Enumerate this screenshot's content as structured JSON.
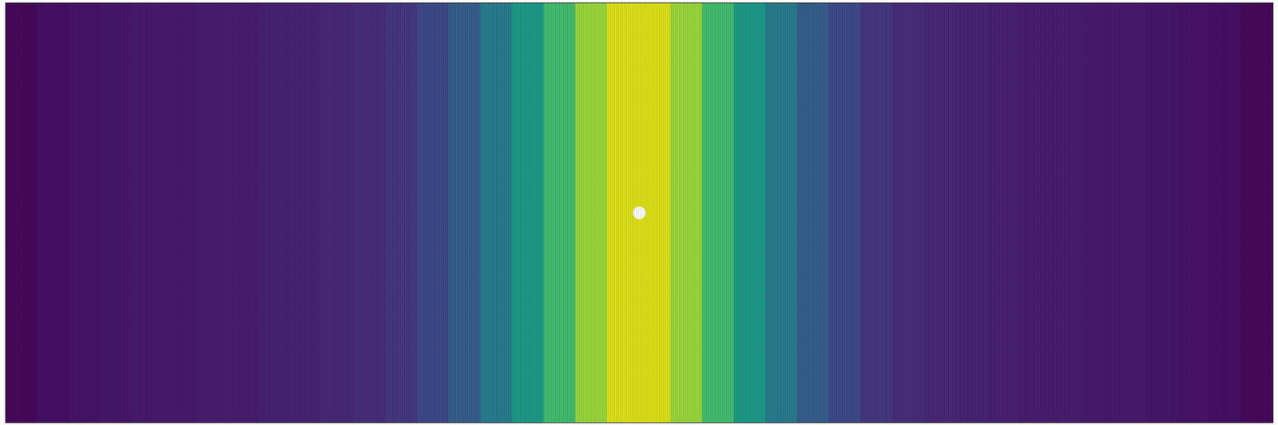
{
  "chart_data": {
    "type": "heatmap",
    "bins": [
      0,
      0.025,
      0.05,
      0.075,
      0.1,
      0.125,
      0.15,
      0.175,
      0.2,
      0.225,
      0.25,
      0.275,
      0.3,
      0.325,
      0.35,
      0.375,
      0.4,
      0.425,
      0.45,
      0.475,
      0.5,
      0.525,
      0.55,
      0.575,
      0.6,
      0.625,
      0.65,
      0.675,
      0.7,
      0.725,
      0.75,
      0.775,
      0.8,
      0.825,
      0.85,
      0.875,
      0.9,
      0.925,
      0.95,
      0.975,
      1
    ],
    "values": [
      0.02,
      0.04,
      0.05,
      0.06,
      0.07,
      0.07,
      0.08,
      0.08,
      0.09,
      0.1,
      0.11,
      0.13,
      0.16,
      0.22,
      0.3,
      0.42,
      0.55,
      0.7,
      0.85,
      0.95,
      0.95,
      0.85,
      0.7,
      0.55,
      0.42,
      0.3,
      0.22,
      0.16,
      0.13,
      0.11,
      0.1,
      0.09,
      0.08,
      0.08,
      0.07,
      0.07,
      0.06,
      0.05,
      0.04,
      0.02
    ],
    "color": "viridis",
    "color_range": [
      0,
      1
    ],
    "obstacle": {
      "x": 0.5,
      "y": 0.5
    },
    "xlim": [
      0,
      1
    ],
    "ylim": [
      0,
      1
    ],
    "tick_labels": false,
    "grid": false
  }
}
